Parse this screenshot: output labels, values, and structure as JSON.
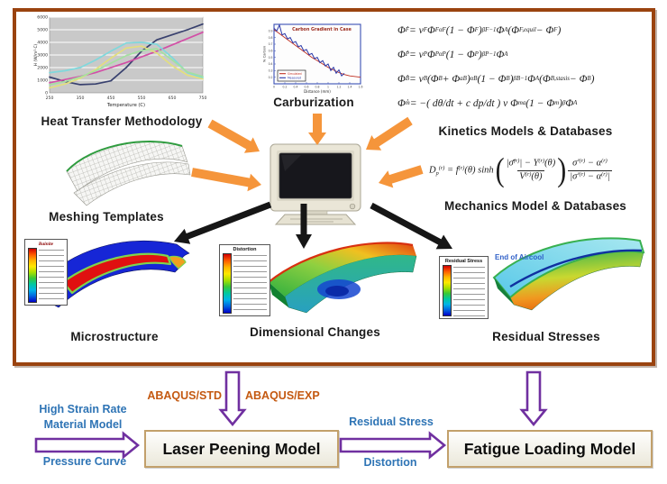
{
  "colors": {
    "arrow_orange": "#F5953B",
    "arrow_black": "#161616",
    "arrow_purple": "#7030A0",
    "blue_label": "#2E74B5",
    "abaqus_label": "#C45911",
    "panel_border": "#9A430F",
    "model_box_border": "#C2A06B"
  },
  "overview": {
    "heat": {
      "caption": "Heat Transfer Methodology"
    },
    "carb": {
      "caption": "Carburization"
    },
    "kinetics": {
      "caption": "Kinetics Models & Databases",
      "equations": [
        "Φ̇~F~  =  ν~F~ Φ~F~^αF^ (1 − Φ~F~)^βF−1^ Φ~A~ (Φ~F,equil~ − Φ~F~)",
        "Φ̇~P~  =  ν~P~ Φ~P~^αP^ (1 − Φ~P~)^βP−1^ Φ~A~",
        "Φ̇~B~  =  ν~B~ (Φ~B~ + Φ~aB~)^αB^ (1 − Φ~B~)^βB−1^ Φ~A~ (Φ~B,stasis~ − Φ~B~)",
        "Φ̇~m~  =  −( dθ/dt + c dp/dt ) ν Φ~m~^a^ (1 − Φ~m~)^β^ Φ~A~"
      ]
    },
    "meshing": {
      "caption": "Meshing Templates"
    },
    "mechanics": {
      "caption": "Mechanics Model & Databases",
      "lhs": "D~p~^(r)^ = f^(r)^(θ) sinh",
      "paren_l": "(",
      "paren_r": ")",
      "frac1_num": "|σ̄^(r)^| − Y^(r)^(θ)",
      "frac1_den": "V^(r)^(θ)",
      "frac2_num": "σ′^(r)^ − α^(r)^",
      "frac2_den": "|σ′^(r)^ − α^(r)^|"
    },
    "micro": {
      "caption": "Microstructure",
      "legend_title": "Bainite"
    },
    "dimensional": {
      "caption": "Dimensional Changes",
      "legend_title": "Distortion"
    },
    "residual": {
      "caption": "Residual Stresses",
      "legend_title": "Residual Stress",
      "annotation": "End of Aircool"
    }
  },
  "chart_data": [
    {
      "type": "line",
      "title": "",
      "xlabel": "Temperature (C)",
      "ylabel": "H (W/m²·C)",
      "xlim": [
        250,
        750
      ],
      "ylim": [
        0,
        6000
      ],
      "xticks": [
        250,
        350,
        450,
        550,
        650,
        750
      ],
      "yticks": [
        0,
        1000,
        2000,
        3000,
        4000,
        5000,
        6000
      ],
      "grid": true,
      "legend": false,
      "plot_bg": "#c9c9c9",
      "x": [
        250,
        300,
        350,
        400,
        450,
        500,
        550,
        600,
        650,
        700,
        750
      ],
      "series": [
        {
          "name": "navy",
          "color": "#38406e",
          "values": [
            1250,
            900,
            650,
            700,
            950,
            2000,
            3300,
            4200,
            4600,
            5000,
            5450
          ]
        },
        {
          "name": "magenta",
          "color": "#d24fa6",
          "values": [
            800,
            1050,
            1300,
            1600,
            2000,
            2400,
            2850,
            3300,
            3800,
            4300,
            4800
          ]
        },
        {
          "name": "cyan",
          "color": "#7fd8dc",
          "values": [
            1600,
            1750,
            2000,
            2600,
            3300,
            3950,
            4000,
            3850,
            2800,
            1600,
            1200
          ]
        },
        {
          "name": "yellow",
          "color": "#e3df7d",
          "values": [
            400,
            700,
            1150,
            1850,
            2750,
            3550,
            3700,
            3150,
            2150,
            1400,
            1100
          ]
        },
        {
          "name": "green",
          "color": "#a4e0a0",
          "values": [
            650,
            900,
            1250,
            1750,
            2350,
            2950,
            3350,
            3500,
            2600,
            1650,
            1300
          ]
        }
      ]
    },
    {
      "type": "line",
      "title": "Carbon Gradient in Case",
      "xlabel": "Distance (mm)",
      "ylabel": "% Carbon",
      "xlim": [
        0,
        1.6
      ],
      "ylim": [
        0.1,
        1.0
      ],
      "xticks": [
        0,
        0.2,
        0.4,
        0.6,
        0.8,
        1,
        1.2,
        1.4,
        1.6
      ],
      "yticks": [
        0.2,
        0.3,
        0.4,
        0.5,
        0.6,
        0.7,
        0.8,
        0.9
      ],
      "grid": false,
      "legend": true,
      "series": [
        {
          "name": "Simulated",
          "color": "#C03022",
          "width": 0.9,
          "x": [
            0,
            0.1,
            0.2,
            0.3,
            0.4,
            0.5,
            0.6,
            0.7,
            0.8,
            0.9,
            1.0,
            1.1,
            1.2,
            1.3,
            1.4,
            1.5,
            1.6
          ],
          "values": [
            0.92,
            0.86,
            0.8,
            0.74,
            0.68,
            0.62,
            0.56,
            0.5,
            0.45,
            0.4,
            0.35,
            0.31,
            0.27,
            0.24,
            0.22,
            0.21,
            0.2
          ]
        },
        {
          "name": "Measured",
          "color": "#2736A8",
          "width": 1.0,
          "x": [
            0,
            0.05,
            0.1,
            0.15,
            0.2,
            0.25,
            0.3,
            0.35,
            0.4,
            0.45,
            0.5,
            0.55,
            0.6,
            0.65,
            0.7,
            0.75,
            0.8,
            0.85,
            0.9,
            0.95,
            1.0,
            1.05,
            1.1,
            1.15,
            1.2,
            1.25,
            1.3
          ],
          "values": [
            0.94,
            0.9,
            0.99,
            0.84,
            0.86,
            0.78,
            0.8,
            0.72,
            0.74,
            0.66,
            0.68,
            0.6,
            0.62,
            0.54,
            0.56,
            0.48,
            0.5,
            0.42,
            0.45,
            0.37,
            0.4,
            0.3,
            0.35,
            0.26,
            0.31,
            0.22,
            0.26
          ]
        }
      ]
    }
  ],
  "flow": {
    "input_line1": "High Strain Rate",
    "input_line2": "Material Model",
    "input_bottom": "Pressure Curve",
    "abaqus_std": "ABAQUS/STD",
    "abaqus_exp": "ABAQUS/EXP",
    "laser_box": "Laser Peening Model",
    "mid_top": "Residual Stress",
    "mid_bottom": "Distortion",
    "fatigue_box": "Fatigue Loading Model"
  }
}
